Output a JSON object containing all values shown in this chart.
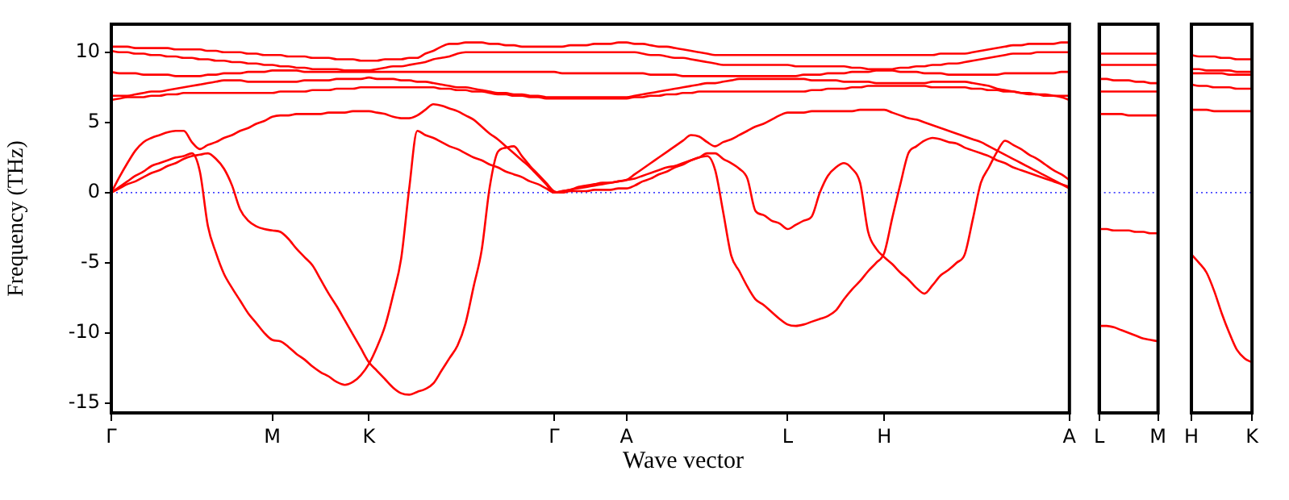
{
  "chart_data": [
    {
      "type": "line",
      "xlabel": "Wave vector",
      "ylabel": "Frequency (THz)",
      "categories": [
        "Γ",
        null,
        null,
        null,
        null,
        null,
        null,
        null,
        null,
        null,
        null,
        null,
        null,
        null,
        null,
        null,
        null,
        null,
        null,
        null,
        "M",
        null,
        null,
        null,
        null,
        null,
        null,
        null,
        null,
        null,
        null,
        null,
        "K",
        null,
        null,
        null,
        null,
        null,
        null,
        null,
        null,
        null,
        null,
        null,
        null,
        null,
        null,
        null,
        null,
        null,
        null,
        null,
        null,
        null,
        null,
        "Γ",
        null,
        null,
        null,
        null,
        null,
        null,
        null,
        null,
        "A",
        null,
        null,
        null,
        null,
        null,
        null,
        null,
        null,
        null,
        null,
        null,
        null,
        null,
        null,
        null,
        null,
        null,
        null,
        null,
        "L",
        null,
        null,
        null,
        null,
        null,
        null,
        null,
        null,
        null,
        null,
        null,
        "H",
        null,
        null,
        null,
        null,
        null,
        null,
        null,
        null,
        null,
        null,
        null,
        null,
        null,
        null,
        null,
        null,
        null,
        null,
        null,
        null,
        null,
        null,
        "A"
      ],
      "ylim": [
        -15.7,
        12
      ],
      "yticks": [
        -15,
        -10,
        -5,
        0,
        5,
        10
      ],
      "ref_lines": [
        {
          "axis": "y",
          "value": 0,
          "color": "#0000ff",
          "line_style": "dotted"
        }
      ],
      "series": [
        {
          "color": "#ff0000",
          "values": [
            10.4,
            10.4,
            10.4,
            10.3,
            10.3,
            10.3,
            10.3,
            10.3,
            10.2,
            10.2,
            10.2,
            10.2,
            10.1,
            10.1,
            10.0,
            10.0,
            10.0,
            9.9,
            9.9,
            9.8,
            9.8,
            9.8,
            9.7,
            9.7,
            9.7,
            9.6,
            9.6,
            9.6,
            9.5,
            9.5,
            9.5,
            9.4,
            9.4,
            9.4,
            9.5,
            9.5,
            9.5,
            9.6,
            9.6,
            9.9,
            10.1,
            10.4,
            10.6,
            10.6,
            10.7,
            10.7,
            10.7,
            10.6,
            10.6,
            10.5,
            10.5,
            10.4,
            10.4,
            10.4,
            10.4,
            10.4,
            10.4,
            10.5,
            10.5,
            10.5,
            10.6,
            10.6,
            10.6,
            10.7,
            10.7,
            10.6,
            10.6,
            10.5,
            10.4,
            10.4,
            10.3,
            10.2,
            10.1,
            10.0,
            9.9,
            9.8,
            9.8,
            9.8,
            9.8,
            9.8,
            9.8,
            9.8,
            9.8,
            9.8,
            9.8,
            9.8,
            9.8,
            9.8,
            9.8,
            9.8,
            9.8,
            9.8,
            9.8,
            9.8,
            9.8,
            9.8,
            9.8,
            9.8,
            9.8,
            9.8,
            9.8,
            9.8,
            9.8,
            9.9,
            9.9,
            9.9,
            9.9,
            10.0,
            10.1,
            10.2,
            10.3,
            10.4,
            10.5,
            10.5,
            10.6,
            10.6,
            10.6,
            10.6,
            10.7,
            10.7
          ]
        },
        {
          "color": "#ff0000",
          "values": [
            10.1,
            10.0,
            10.0,
            9.9,
            9.9,
            9.8,
            9.8,
            9.7,
            9.7,
            9.6,
            9.6,
            9.5,
            9.5,
            9.4,
            9.4,
            9.3,
            9.3,
            9.2,
            9.2,
            9.1,
            9.1,
            9.0,
            9.0,
            8.9,
            8.9,
            8.8,
            8.8,
            8.8,
            8.8,
            8.7,
            8.7,
            8.7,
            8.7,
            8.8,
            8.9,
            9.0,
            9.0,
            9.1,
            9.2,
            9.3,
            9.5,
            9.6,
            9.7,
            9.9,
            10.0,
            10.0,
            10.0,
            10.0,
            10.0,
            10.0,
            10.0,
            10.0,
            10.0,
            10.0,
            10.0,
            10.0,
            10.0,
            10.0,
            10.0,
            10.0,
            10.0,
            10.0,
            10.0,
            10.0,
            10.0,
            10.0,
            9.9,
            9.8,
            9.8,
            9.7,
            9.6,
            9.6,
            9.5,
            9.4,
            9.3,
            9.2,
            9.1,
            9.1,
            9.1,
            9.1,
            9.1,
            9.1,
            9.1,
            9.1,
            9.1,
            9.0,
            9.0,
            9.0,
            9.0,
            9.0,
            9.0,
            9.0,
            8.9,
            8.9,
            8.8,
            8.8,
            8.8,
            8.8,
            8.9,
            8.9,
            9.0,
            9.0,
            9.1,
            9.1,
            9.2,
            9.2,
            9.3,
            9.4,
            9.5,
            9.6,
            9.7,
            9.8,
            9.9,
            9.9,
            9.9,
            10.0,
            10.0,
            10.0,
            10.0,
            10.0
          ]
        },
        {
          "color": "#ff0000",
          "values": [
            8.6,
            8.5,
            8.5,
            8.5,
            8.4,
            8.4,
            8.4,
            8.4,
            8.3,
            8.3,
            8.3,
            8.3,
            8.4,
            8.4,
            8.5,
            8.5,
            8.5,
            8.6,
            8.6,
            8.6,
            8.7,
            8.7,
            8.7,
            8.7,
            8.6,
            8.6,
            8.6,
            8.6,
            8.6,
            8.6,
            8.6,
            8.6,
            8.6,
            8.6,
            8.6,
            8.6,
            8.6,
            8.6,
            8.6,
            8.6,
            8.6,
            8.6,
            8.6,
            8.6,
            8.6,
            8.6,
            8.6,
            8.6,
            8.6,
            8.6,
            8.6,
            8.6,
            8.6,
            8.6,
            8.6,
            8.6,
            8.5,
            8.5,
            8.5,
            8.5,
            8.5,
            8.5,
            8.5,
            8.5,
            8.5,
            8.5,
            8.5,
            8.4,
            8.4,
            8.4,
            8.4,
            8.3,
            8.3,
            8.3,
            8.3,
            8.3,
            8.3,
            8.3,
            8.3,
            8.3,
            8.3,
            8.3,
            8.3,
            8.3,
            8.3,
            8.3,
            8.4,
            8.4,
            8.4,
            8.5,
            8.5,
            8.5,
            8.6,
            8.6,
            8.6,
            8.7,
            8.7,
            8.7,
            8.6,
            8.6,
            8.6,
            8.5,
            8.5,
            8.5,
            8.4,
            8.4,
            8.4,
            8.4,
            8.4,
            8.4,
            8.4,
            8.5,
            8.5,
            8.5,
            8.5,
            8.5,
            8.5,
            8.5,
            8.6,
            8.6
          ]
        },
        {
          "color": "#ff0000",
          "values": [
            6.9,
            6.9,
            6.9,
            7.0,
            7.1,
            7.2,
            7.2,
            7.3,
            7.4,
            7.5,
            7.6,
            7.7,
            7.8,
            7.9,
            8.0,
            8.0,
            8.0,
            7.9,
            7.9,
            7.9,
            7.9,
            7.9,
            7.9,
            7.9,
            8.0,
            8.0,
            8.0,
            8.0,
            8.1,
            8.1,
            8.1,
            8.1,
            8.2,
            8.1,
            8.1,
            8.1,
            8.0,
            8.0,
            7.9,
            7.9,
            7.8,
            7.7,
            7.6,
            7.5,
            7.5,
            7.4,
            7.3,
            7.2,
            7.1,
            7.1,
            7.0,
            7.0,
            6.9,
            6.9,
            6.8,
            6.8,
            6.8,
            6.8,
            6.8,
            6.8,
            6.8,
            6.8,
            6.8,
            6.8,
            6.8,
            6.9,
            7.0,
            7.1,
            7.2,
            7.3,
            7.4,
            7.5,
            7.6,
            7.7,
            7.8,
            7.8,
            7.9,
            8.0,
            8.1,
            8.1,
            8.1,
            8.1,
            8.1,
            8.1,
            8.1,
            8.1,
            8.1,
            8.0,
            8.0,
            8.0,
            8.0,
            7.9,
            7.9,
            7.9,
            7.9,
            7.8,
            7.8,
            7.8,
            7.8,
            7.8,
            7.8,
            7.8,
            7.9,
            7.9,
            7.9,
            7.9,
            7.9,
            7.8,
            7.7,
            7.6,
            7.4,
            7.3,
            7.2,
            7.1,
            7.1,
            7.0,
            7.0,
            6.9,
            6.9,
            6.9
          ]
        },
        {
          "color": "#ff0000",
          "values": [
            6.6,
            6.7,
            6.8,
            6.8,
            6.8,
            6.9,
            6.9,
            7.0,
            7.0,
            7.1,
            7.1,
            7.1,
            7.1,
            7.1,
            7.1,
            7.1,
            7.1,
            7.1,
            7.1,
            7.1,
            7.1,
            7.2,
            7.2,
            7.2,
            7.2,
            7.3,
            7.3,
            7.3,
            7.4,
            7.4,
            7.4,
            7.5,
            7.5,
            7.5,
            7.5,
            7.5,
            7.5,
            7.5,
            7.5,
            7.5,
            7.5,
            7.4,
            7.4,
            7.3,
            7.3,
            7.2,
            7.2,
            7.1,
            7.0,
            7.0,
            6.9,
            6.9,
            6.8,
            6.8,
            6.7,
            6.7,
            6.7,
            6.7,
            6.7,
            6.7,
            6.7,
            6.7,
            6.7,
            6.7,
            6.7,
            6.8,
            6.8,
            6.9,
            6.9,
            7.0,
            7.0,
            7.1,
            7.1,
            7.2,
            7.2,
            7.2,
            7.2,
            7.2,
            7.2,
            7.2,
            7.2,
            7.2,
            7.2,
            7.2,
            7.2,
            7.2,
            7.2,
            7.3,
            7.3,
            7.4,
            7.4,
            7.4,
            7.5,
            7.5,
            7.6,
            7.6,
            7.6,
            7.6,
            7.6,
            7.6,
            7.6,
            7.6,
            7.5,
            7.5,
            7.5,
            7.5,
            7.5,
            7.4,
            7.4,
            7.3,
            7.3,
            7.2,
            7.2,
            7.1,
            7.0,
            7.0,
            6.9,
            6.9,
            6.8,
            6.6
          ]
        },
        {
          "color": "#ff0000",
          "values": [
            0,
            1.1,
            2.1,
            3.0,
            3.6,
            3.9,
            4.1,
            4.3,
            4.4,
            4.4,
            3.6,
            3.1,
            3.4,
            3.6,
            3.9,
            4.1,
            4.4,
            4.6,
            4.9,
            5.1,
            5.4,
            5.5,
            5.5,
            5.6,
            5.6,
            5.6,
            5.6,
            5.7,
            5.7,
            5.7,
            5.8,
            5.8,
            5.8,
            5.7,
            5.6,
            5.4,
            5.3,
            5.3,
            5.5,
            5.9,
            6.3,
            6.2,
            6.0,
            5.8,
            5.5,
            5.2,
            4.7,
            4.2,
            3.8,
            3.3,
            2.8,
            2.3,
            1.8,
            1.2,
            0.6,
            0,
            0.1,
            0.2,
            0.4,
            0.5,
            0.6,
            0.7,
            0.7,
            0.8,
            0.9,
            1.3,
            1.7,
            2.1,
            2.5,
            2.9,
            3.3,
            3.7,
            4.1,
            4.0,
            3.6,
            3.3,
            3.6,
            3.8,
            4.1,
            4.4,
            4.7,
            4.9,
            5.2,
            5.5,
            5.7,
            5.7,
            5.7,
            5.8,
            5.8,
            5.8,
            5.8,
            5.8,
            5.8,
            5.9,
            5.9,
            5.9,
            5.9,
            5.7,
            5.5,
            5.3,
            5.2,
            5.0,
            4.8,
            4.6,
            4.4,
            4.2,
            4.0,
            3.8,
            3.6,
            3.3,
            3.0,
            2.7,
            2.4,
            2.1,
            1.8,
            1.5,
            1.2,
            0.9,
            0.6,
            0.3
          ]
        },
        {
          "color": "#ff0000",
          "values": [
            0,
            0.4,
            0.8,
            1.2,
            1.5,
            1.9,
            2.1,
            2.3,
            2.5,
            2.6,
            2.8,
            1.5,
            -2.4,
            -4.3,
            -5.8,
            -6.8,
            -7.7,
            -8.6,
            -9.3,
            -10.0,
            -10.5,
            -10.6,
            -11.0,
            -11.5,
            -11.9,
            -12.4,
            -12.8,
            -13.1,
            -13.5,
            -13.7,
            -13.5,
            -13.0,
            -12.2,
            -11.0,
            -9.5,
            -7.3,
            -4.7,
            0.3,
            4.4,
            4.1,
            3.9,
            3.6,
            3.3,
            3.1,
            2.8,
            2.5,
            2.3,
            2.0,
            1.8,
            1.5,
            1.3,
            1.1,
            0.8,
            0.6,
            0.3,
            0,
            0.1,
            0.2,
            0.3,
            0.4,
            0.5,
            0.6,
            0.7,
            0.8,
            0.9,
            1.0,
            1.2,
            1.4,
            1.6,
            1.8,
            1.9,
            2.1,
            2.3,
            2.5,
            2.6,
            1.6,
            -1.4,
            -4.5,
            -5.6,
            -6.7,
            -7.6,
            -8.0,
            -8.5,
            -9.0,
            -9.4,
            -9.5,
            -9.4,
            -9.2,
            -9.0,
            -8.8,
            -8.4,
            -7.6,
            -6.9,
            -6.3,
            -5.6,
            -5.0,
            -4.3,
            -1.8,
            0.6,
            2.8,
            3.3,
            3.7,
            3.9,
            3.8,
            3.6,
            3.5,
            3.2,
            3.0,
            2.8,
            2.6,
            2.3,
            2.1,
            1.8,
            1.6,
            1.4,
            1.2,
            1.0,
            0.8,
            0.6,
            0.4
          ]
        },
        {
          "color": "#ff0000",
          "values": [
            0,
            0.3,
            0.6,
            0.8,
            1.1,
            1.4,
            1.6,
            1.9,
            2.1,
            2.4,
            2.6,
            2.7,
            2.8,
            2.4,
            1.7,
            0.5,
            -1.2,
            -2.0,
            -2.4,
            -2.6,
            -2.7,
            -2.8,
            -3.3,
            -4.0,
            -4.6,
            -5.2,
            -6.2,
            -7.2,
            -8.1,
            -9.1,
            -10.1,
            -11.1,
            -12.1,
            -12.7,
            -13.3,
            -13.9,
            -14.3,
            -14.4,
            -14.2,
            -14.0,
            -13.6,
            -12.7,
            -11.8,
            -10.9,
            -9.3,
            -6.7,
            -4.1,
            0.4,
            2.9,
            3.2,
            3.3,
            2.6,
            1.9,
            1.3,
            0.7,
            0.1,
            0.0,
            0.1,
            0.1,
            0.1,
            0.2,
            0.2,
            0.2,
            0.3,
            0.3,
            0.5,
            0.8,
            1.0,
            1.3,
            1.5,
            1.8,
            2.0,
            2.3,
            2.5,
            2.8,
            2.8,
            2.4,
            2.1,
            1.7,
            1.0,
            -1.3,
            -1.6,
            -2.0,
            -2.2,
            -2.6,
            -2.3,
            -2.0,
            -1.7,
            0,
            1.2,
            1.8,
            2.1,
            1.7,
            0.7,
            -2.8,
            -4.0,
            -4.6,
            -5.1,
            -5.7,
            -6.2,
            -6.8,
            -7.2,
            -6.6,
            -5.9,
            -5.5,
            -5.0,
            -4.4,
            -1.9,
            0.7,
            1.8,
            2.9,
            3.7,
            3.4,
            3.1,
            2.7,
            2.4,
            2.0,
            1.6,
            1.3,
            0.9
          ]
        }
      ]
    },
    {
      "type": "line",
      "tick_labels": "x",
      "categories": [
        "L",
        null,
        null,
        null,
        null,
        null,
        null,
        null,
        "M"
      ],
      "ylim": [
        -15.7,
        12
      ],
      "yticks": [
        -15,
        -10,
        -5,
        0,
        5,
        10
      ],
      "ref_lines": [
        {
          "axis": "y",
          "value": 0,
          "color": "#0000ff",
          "line_style": "dotted"
        }
      ],
      "series": [
        {
          "color": "#ff0000",
          "values": [
            9.9,
            9.9,
            9.9,
            9.9,
            9.9,
            9.9,
            9.9,
            9.9,
            9.9
          ]
        },
        {
          "color": "#ff0000",
          "values": [
            9.1,
            9.1,
            9.1,
            9.1,
            9.1,
            9.1,
            9.1,
            9.1,
            9.1
          ]
        },
        {
          "color": "#ff0000",
          "values": [
            8.1,
            8.1,
            8.0,
            8.0,
            8.0,
            7.9,
            7.9,
            7.8,
            7.8
          ]
        },
        {
          "color": "#ff0000",
          "values": [
            7.2,
            7.2,
            7.2,
            7.2,
            7.2,
            7.2,
            7.2,
            7.2,
            7.2
          ]
        },
        {
          "color": "#ff0000",
          "values": [
            5.6,
            5.6,
            5.6,
            5.6,
            5.5,
            5.5,
            5.5,
            5.5,
            5.5
          ]
        },
        {
          "color": "#ff0000",
          "values": [
            -2.6,
            -2.6,
            -2.7,
            -2.7,
            -2.7,
            -2.8,
            -2.8,
            -2.9,
            -2.9
          ]
        },
        {
          "color": "#ff0000",
          "values": [
            -9.5,
            -9.5,
            -9.6,
            -9.8,
            -10.0,
            -10.2,
            -10.4,
            -10.5,
            -10.6
          ]
        }
      ]
    },
    {
      "type": "line",
      "tick_labels": "x",
      "categories": [
        "H",
        null,
        null,
        null,
        null,
        null,
        null,
        null,
        "K"
      ],
      "ylim": [
        -15.7,
        12
      ],
      "yticks": [
        -15,
        -10,
        -5,
        0,
        5,
        10
      ],
      "ref_lines": [
        {
          "axis": "y",
          "value": 0,
          "color": "#0000ff",
          "line_style": "dotted"
        }
      ],
      "series": [
        {
          "color": "#ff0000",
          "values": [
            9.8,
            9.7,
            9.7,
            9.7,
            9.6,
            9.6,
            9.5,
            9.5,
            9.5
          ]
        },
        {
          "color": "#ff0000",
          "values": [
            8.8,
            8.8,
            8.7,
            8.7,
            8.7,
            8.7,
            8.6,
            8.6,
            8.6
          ]
        },
        {
          "color": "#ff0000",
          "values": [
            8.5,
            8.5,
            8.5,
            8.5,
            8.5,
            8.4,
            8.4,
            8.4,
            8.4
          ]
        },
        {
          "color": "#ff0000",
          "values": [
            7.7,
            7.6,
            7.6,
            7.5,
            7.5,
            7.5,
            7.4,
            7.4,
            7.4
          ]
        },
        {
          "color": "#ff0000",
          "values": [
            5.9,
            5.9,
            5.9,
            5.8,
            5.8,
            5.8,
            5.8,
            5.8,
            5.8
          ]
        },
        {
          "color": "#ff0000",
          "values": [
            -4.4,
            -5.0,
            -5.7,
            -7.0,
            -8.6,
            -10.0,
            -11.2,
            -11.8,
            -12.1
          ]
        }
      ]
    }
  ]
}
